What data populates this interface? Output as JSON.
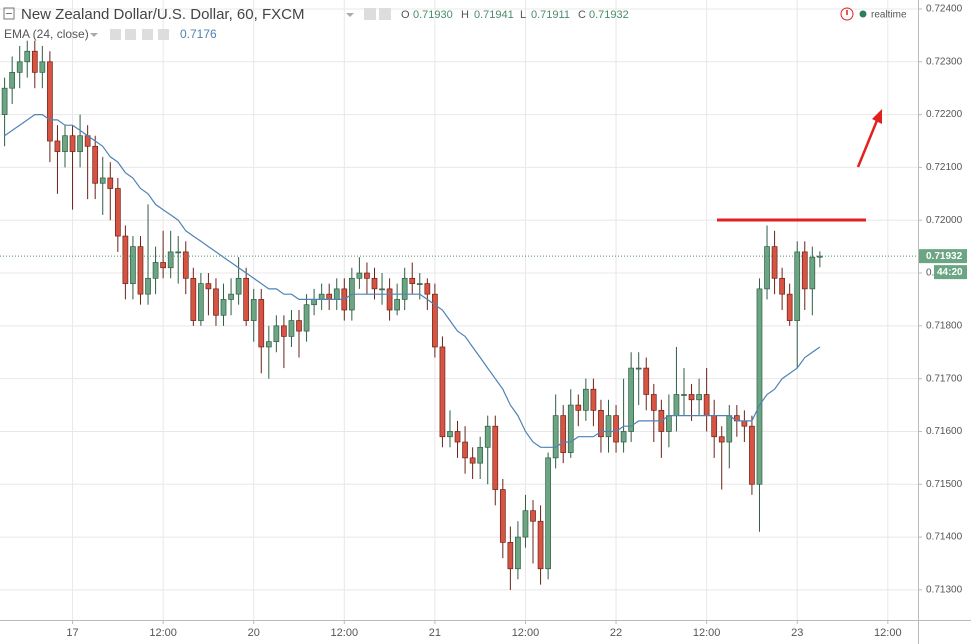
{
  "chart_data": {
    "type": "candlestick",
    "title": "New Zealand Dollar/U.S. Dollar, 60, FXCM",
    "header": {
      "o_label": "O",
      "o": "0.71930",
      "h_label": "H",
      "h": "0.71941",
      "l_label": "L",
      "l": "0.71911",
      "c_label": "C",
      "c": "0.71932",
      "mode": "realtime",
      "countdown": "44:20"
    },
    "up_color": "#6ba583",
    "down_color": "#d75442",
    "open": [
      0.722,
      0.7225,
      0.7228,
      0.723,
      0.7232,
      0.7228,
      0.723,
      0.7215,
      0.7213,
      0.7216,
      0.7213,
      0.7216,
      0.7214,
      0.7207,
      0.7208,
      0.7206,
      0.7197,
      0.7188,
      0.7195,
      0.7186,
      0.7189,
      0.7192,
      0.7191,
      0.7194,
      0.7194,
      0.7189,
      0.7181,
      0.7188,
      0.7187,
      0.7182,
      0.7185,
      0.7186,
      0.7189,
      0.7181,
      0.7185,
      0.7176,
      0.7177,
      0.718,
      0.7178,
      0.7181,
      0.7179,
      0.7184,
      0.7185,
      0.7186,
      0.7185,
      0.7187,
      0.7183,
      0.7189,
      0.719,
      0.7189,
      0.7187,
      0.7187,
      0.7183,
      0.7185,
      0.7189,
      0.7188,
      0.7188,
      0.7186,
      0.7176,
      0.7159,
      0.716,
      0.7158,
      0.7155,
      0.7154,
      0.7157,
      0.7161,
      0.7149,
      0.7139,
      0.7134,
      0.714,
      0.7145,
      0.7143,
      0.7134,
      0.7155,
      0.7163,
      0.7156,
      0.7165,
      0.7164,
      0.7168,
      0.7164,
      0.7159,
      0.7163,
      0.7158,
      0.716,
      0.7172,
      0.7172,
      0.7167,
      0.7164,
      0.716,
      0.7163,
      0.7167,
      0.7167,
      0.7166,
      0.7167,
      0.7163,
      0.7159,
      0.7158,
      0.7163,
      0.7162,
      0.7161,
      0.715,
      0.7187,
      0.7195,
      0.7189,
      0.7186,
      0.7181,
      0.7194,
      0.7187,
      0.7193
    ],
    "high": [
      0.7227,
      0.7231,
      0.7233,
      0.7234,
      0.7234,
      0.7233,
      0.7232,
      0.7218,
      0.7218,
      0.7218,
      0.722,
      0.7218,
      0.7216,
      0.7212,
      0.7211,
      0.7208,
      0.7199,
      0.7197,
      0.7197,
      0.7203,
      0.7195,
      0.7198,
      0.7198,
      0.7197,
      0.7196,
      0.7191,
      0.719,
      0.719,
      0.7189,
      0.7188,
      0.7189,
      0.7193,
      0.7191,
      0.7187,
      0.7187,
      0.718,
      0.7182,
      0.7182,
      0.7183,
      0.7183,
      0.7186,
      0.7187,
      0.7188,
      0.7188,
      0.7189,
      0.7189,
      0.7191,
      0.7193,
      0.7192,
      0.7191,
      0.719,
      0.7189,
      0.7188,
      0.7191,
      0.7192,
      0.719,
      0.7189,
      0.7188,
      0.7178,
      0.7164,
      0.7162,
      0.7161,
      0.7157,
      0.7159,
      0.7163,
      0.7163,
      0.7151,
      0.7142,
      0.7143,
      0.7148,
      0.7147,
      0.7146,
      0.7156,
      0.7167,
      0.7165,
      0.7168,
      0.7167,
      0.717,
      0.717,
      0.7166,
      0.7166,
      0.7165,
      0.717,
      0.7175,
      0.7175,
      0.7174,
      0.7169,
      0.7166,
      0.7167,
      0.7176,
      0.7172,
      0.7169,
      0.717,
      0.7172,
      0.7166,
      0.7161,
      0.7165,
      0.7165,
      0.7164,
      0.7163,
      0.7189,
      0.7199,
      0.7198,
      0.7191,
      0.7188,
      0.7196,
      0.7196,
      0.7195,
      0.71941
    ],
    "low": [
      0.7214,
      0.7222,
      0.7225,
      0.7227,
      0.7225,
      0.7225,
      0.7211,
      0.7205,
      0.721,
      0.7202,
      0.721,
      0.7204,
      0.7204,
      0.7201,
      0.72,
      0.7194,
      0.7185,
      0.7185,
      0.7184,
      0.7184,
      0.7186,
      0.7189,
      0.7189,
      0.7188,
      0.7186,
      0.718,
      0.718,
      0.7182,
      0.718,
      0.718,
      0.7182,
      0.7184,
      0.718,
      0.7177,
      0.7171,
      0.717,
      0.7175,
      0.7172,
      0.7176,
      0.7174,
      0.7177,
      0.7182,
      0.7183,
      0.7183,
      0.7183,
      0.7181,
      0.7181,
      0.7187,
      0.7186,
      0.7185,
      0.7184,
      0.7181,
      0.7182,
      0.7183,
      0.7186,
      0.7185,
      0.7183,
      0.7174,
      0.7157,
      0.7157,
      0.7155,
      0.7152,
      0.7151,
      0.7151,
      0.715,
      0.7146,
      0.7136,
      0.713,
      0.7132,
      0.7138,
      0.7135,
      0.7131,
      0.7132,
      0.7153,
      0.7154,
      0.7155,
      0.7161,
      0.7162,
      0.7161,
      0.7156,
      0.7156,
      0.7156,
      0.7156,
      0.7158,
      0.7165,
      0.7164,
      0.7158,
      0.7155,
      0.7157,
      0.716,
      0.7163,
      0.7162,
      0.7163,
      0.716,
      0.7155,
      0.7149,
      0.7153,
      0.7159,
      0.7158,
      0.7148,
      0.7141,
      0.7185,
      0.7186,
      0.7183,
      0.718,
      0.7172,
      0.7183,
      0.7182,
      0.71911
    ],
    "close": [
      0.7225,
      0.7228,
      0.723,
      0.7232,
      0.7228,
      0.723,
      0.7215,
      0.7213,
      0.7216,
      0.7213,
      0.7216,
      0.7214,
      0.7207,
      0.7208,
      0.7206,
      0.7197,
      0.7188,
      0.7195,
      0.7186,
      0.7189,
      0.7192,
      0.7191,
      0.7194,
      0.7194,
      0.7189,
      0.7181,
      0.7188,
      0.7187,
      0.7182,
      0.7185,
      0.7186,
      0.7189,
      0.7181,
      0.7185,
      0.7176,
      0.7177,
      0.718,
      0.7178,
      0.7181,
      0.7179,
      0.7184,
      0.7185,
      0.7186,
      0.7185,
      0.7187,
      0.7183,
      0.7189,
      0.719,
      0.7189,
      0.7187,
      0.7187,
      0.7183,
      0.7185,
      0.7189,
      0.7188,
      0.7188,
      0.7186,
      0.7176,
      0.7159,
      0.716,
      0.7158,
      0.7155,
      0.7154,
      0.7157,
      0.7161,
      0.7149,
      0.7139,
      0.7134,
      0.714,
      0.7145,
      0.7143,
      0.7134,
      0.7155,
      0.7163,
      0.7156,
      0.7165,
      0.7164,
      0.7168,
      0.7164,
      0.7159,
      0.7163,
      0.7158,
      0.716,
      0.7172,
      0.7172,
      0.7167,
      0.7164,
      0.716,
      0.7163,
      0.7167,
      0.7167,
      0.7166,
      0.7167,
      0.7163,
      0.7159,
      0.7158,
      0.7163,
      0.7162,
      0.7161,
      0.715,
      0.7187,
      0.7195,
      0.7189,
      0.7186,
      0.7181,
      0.7194,
      0.7187,
      0.7193,
      0.71932
    ],
    "ema": {
      "name": "EMA (24, close)",
      "color": "#4f83b5",
      "values": [
        0.7216,
        0.7217,
        0.7218,
        0.7219,
        0.722,
        0.722,
        0.7219,
        0.7219,
        0.7218,
        0.7218,
        0.7217,
        0.7216,
        0.7215,
        0.7214,
        0.7212,
        0.7211,
        0.7209,
        0.7208,
        0.7206,
        0.7205,
        0.7203,
        0.7202,
        0.7201,
        0.72,
        0.7198,
        0.7197,
        0.7196,
        0.7195,
        0.7194,
        0.7193,
        0.7192,
        0.7191,
        0.719,
        0.7189,
        0.7188,
        0.7187,
        0.7187,
        0.7186,
        0.7186,
        0.7185,
        0.7185,
        0.7185,
        0.7185,
        0.7185,
        0.7185,
        0.7185,
        0.7186,
        0.7186,
        0.7186,
        0.7186,
        0.7186,
        0.7186,
        0.7186,
        0.7186,
        0.7186,
        0.7186,
        0.7185,
        0.7184,
        0.7183,
        0.7181,
        0.7179,
        0.7178,
        0.7176,
        0.7174,
        0.7172,
        0.717,
        0.7168,
        0.7165,
        0.7163,
        0.716,
        0.7158,
        0.7157,
        0.7157,
        0.7157,
        0.7158,
        0.7158,
        0.7159,
        0.7159,
        0.7159,
        0.716,
        0.716,
        0.716,
        0.7161,
        0.7161,
        0.7162,
        0.7162,
        0.7162,
        0.7162,
        0.7163,
        0.7163,
        0.7163,
        0.7163,
        0.7163,
        0.7163,
        0.7163,
        0.7163,
        0.7163,
        0.7162,
        0.7162,
        0.7162,
        0.7165,
        0.7167,
        0.7168,
        0.717,
        0.7171,
        0.7172,
        0.7174,
        0.7175,
        0.7176
      ]
    },
    "xlim": [
      -0.61,
      121
    ],
    "xticks": [
      {
        "value": 9,
        "label": "17"
      },
      {
        "value": 21,
        "label": "12:00"
      },
      {
        "value": 33,
        "label": "20"
      },
      {
        "value": 45,
        "label": "12:00"
      },
      {
        "value": 57,
        "label": "21"
      },
      {
        "value": 69,
        "label": "12:00"
      },
      {
        "value": 81,
        "label": "22"
      },
      {
        "value": 93,
        "label": "12:00"
      },
      {
        "value": 105,
        "label": "23"
      },
      {
        "value": 117,
        "label": "12:00"
      }
    ],
    "ylim": [
      0.71243,
      0.72417
    ],
    "yticks": [
      {
        "value": 0.724,
        "label": "0.72400"
      },
      {
        "value": 0.723,
        "label": "0.72300"
      },
      {
        "value": 0.722,
        "label": "0.72200"
      },
      {
        "value": 0.721,
        "label": "0.72100"
      },
      {
        "value": 0.72,
        "label": "0.72000"
      },
      {
        "value": 0.719,
        "label": "0.71900"
      },
      {
        "value": 0.718,
        "label": "0.71800"
      },
      {
        "value": 0.717,
        "label": "0.71700"
      },
      {
        "value": 0.716,
        "label": "0.71600"
      },
      {
        "value": 0.715,
        "label": "0.71500"
      },
      {
        "value": 0.714,
        "label": "0.71400"
      },
      {
        "value": 0.713,
        "label": "0.71300"
      }
    ],
    "grid": true
  }
}
